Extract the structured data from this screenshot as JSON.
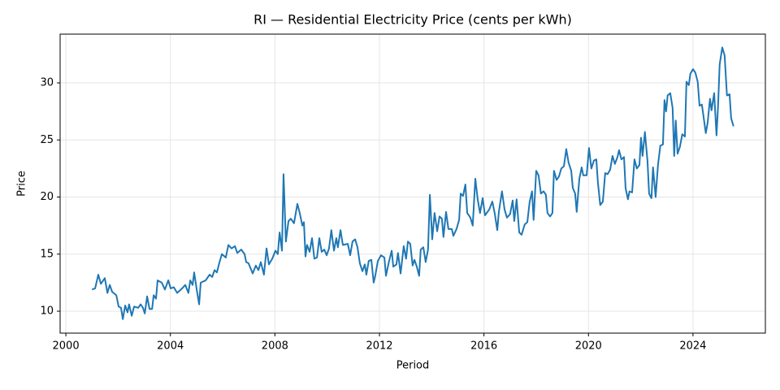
{
  "chart_data": {
    "type": "line",
    "title": "RI — Residential Electricity Price (cents per kWh)",
    "x_label": "Period",
    "y_label": "Price",
    "color": "#1f77b4",
    "grid": true,
    "xlim": [
      1999.78,
      2026.77
    ],
    "ylim": [
      8.08,
      34.27
    ],
    "xticks": [
      2000,
      2004,
      2008,
      2012,
      2016,
      2020,
      2024
    ],
    "yticks": [
      10,
      15,
      20,
      25,
      30
    ],
    "x": [
      2001.0,
      2001.12,
      2001.24,
      2001.34,
      2001.49,
      2001.59,
      2001.68,
      2001.77,
      2001.93,
      2002.02,
      2002.11,
      2002.18,
      2002.27,
      2002.36,
      2002.42,
      2002.52,
      2002.61,
      2002.77,
      2002.86,
      2002.95,
      2003.02,
      2003.11,
      2003.2,
      2003.3,
      2003.36,
      2003.45,
      2003.51,
      2003.67,
      2003.79,
      2003.92,
      2004.01,
      2004.13,
      2004.26,
      2004.45,
      2004.57,
      2004.69,
      2004.76,
      2004.85,
      2004.91,
      2005.0,
      2005.1,
      2005.16,
      2005.35,
      2005.5,
      2005.6,
      2005.69,
      2005.78,
      2005.88,
      2005.97,
      2006.12,
      2006.22,
      2006.34,
      2006.47,
      2006.56,
      2006.71,
      2006.84,
      2006.9,
      2006.99,
      2007.15,
      2007.27,
      2007.37,
      2007.46,
      2007.58,
      2007.68,
      2007.77,
      2007.9,
      2008.02,
      2008.11,
      2008.18,
      2008.27,
      2008.33,
      2008.42,
      2008.52,
      2008.61,
      2008.73,
      2008.86,
      2008.95,
      2009.05,
      2009.11,
      2009.17,
      2009.23,
      2009.33,
      2009.42,
      2009.51,
      2009.61,
      2009.7,
      2009.79,
      2009.89,
      2009.98,
      2010.07,
      2010.16,
      2010.26,
      2010.35,
      2010.41,
      2010.51,
      2010.6,
      2010.79,
      2010.88,
      2010.97,
      2011.07,
      2011.16,
      2011.25,
      2011.35,
      2011.44,
      2011.5,
      2011.59,
      2011.69,
      2011.78,
      2011.84,
      2011.94,
      2012.06,
      2012.19,
      2012.25,
      2012.37,
      2012.47,
      2012.53,
      2012.65,
      2012.71,
      2012.81,
      2012.93,
      2013.02,
      2013.09,
      2013.18,
      2013.27,
      2013.34,
      2013.43,
      2013.52,
      2013.58,
      2013.68,
      2013.77,
      2013.86,
      2013.93,
      2014.02,
      2014.11,
      2014.21,
      2014.3,
      2014.39,
      2014.45,
      2014.55,
      2014.64,
      2014.77,
      2014.83,
      2014.95,
      2015.05,
      2015.11,
      2015.2,
      2015.29,
      2015.36,
      2015.48,
      2015.57,
      2015.67,
      2015.76,
      2015.85,
      2015.95,
      2016.04,
      2016.2,
      2016.32,
      2016.41,
      2016.51,
      2016.57,
      2016.69,
      2016.79,
      2016.88,
      2017.0,
      2017.1,
      2017.16,
      2017.25,
      2017.35,
      2017.44,
      2017.56,
      2017.66,
      2017.75,
      2017.84,
      2017.9,
      2018.0,
      2018.09,
      2018.18,
      2018.28,
      2018.37,
      2018.43,
      2018.53,
      2018.62,
      2018.68,
      2018.78,
      2018.87,
      2018.96,
      2019.06,
      2019.15,
      2019.24,
      2019.34,
      2019.4,
      2019.49,
      2019.55,
      2019.65,
      2019.74,
      2019.8,
      2019.93,
      2020.02,
      2020.11,
      2020.21,
      2020.3,
      2020.36,
      2020.45,
      2020.55,
      2020.64,
      2020.73,
      2020.83,
      2020.92,
      2021.01,
      2021.11,
      2021.17,
      2021.26,
      2021.36,
      2021.42,
      2021.51,
      2021.57,
      2021.67,
      2021.76,
      2021.85,
      2021.95,
      2022.01,
      2022.07,
      2022.16,
      2022.26,
      2022.32,
      2022.41,
      2022.47,
      2022.57,
      2022.66,
      2022.75,
      2022.85,
      2022.91,
      2022.97,
      2023.03,
      2023.13,
      2023.22,
      2023.28,
      2023.34,
      2023.41,
      2023.5,
      2023.59,
      2023.69,
      2023.75,
      2023.84,
      2023.9,
      2024.0,
      2024.09,
      2024.18,
      2024.25,
      2024.34,
      2024.4,
      2024.49,
      2024.56,
      2024.65,
      2024.71,
      2024.81,
      2024.9,
      2024.96,
      2025.02,
      2025.12,
      2025.21,
      2025.3,
      2025.4,
      2025.46,
      2025.55
    ],
    "values": [
      11.9,
      12.0,
      13.2,
      12.4,
      12.9,
      11.6,
      12.3,
      11.7,
      11.4,
      10.4,
      10.3,
      9.3,
      10.5,
      9.9,
      10.6,
      9.6,
      10.4,
      10.3,
      10.6,
      10.3,
      9.8,
      11.3,
      10.2,
      10.2,
      11.4,
      11.1,
      12.7,
      12.5,
      11.9,
      12.7,
      12.0,
      12.1,
      11.6,
      12.0,
      12.3,
      11.6,
      12.7,
      12.3,
      13.4,
      12.0,
      10.6,
      12.5,
      12.7,
      13.2,
      13.0,
      13.6,
      13.4,
      14.3,
      15.0,
      14.7,
      15.8,
      15.5,
      15.7,
      15.1,
      15.4,
      15.0,
      14.3,
      14.2,
      13.3,
      14.0,
      13.6,
      14.3,
      13.2,
      15.5,
      14.1,
      14.6,
      15.3,
      15.0,
      16.9,
      15.3,
      22.0,
      16.1,
      17.9,
      18.1,
      17.7,
      19.4,
      18.6,
      17.5,
      17.8,
      14.8,
      15.8,
      15.2,
      16.4,
      14.6,
      14.7,
      16.4,
      15.2,
      15.4,
      14.9,
      15.5,
      17.1,
      15.3,
      16.4,
      15.6,
      17.1,
      15.8,
      15.9,
      14.9,
      16.1,
      16.3,
      15.6,
      14.2,
      13.5,
      14.1,
      13.2,
      14.4,
      14.5,
      12.5,
      13.1,
      14.4,
      14.9,
      14.7,
      13.1,
      14.4,
      15.3,
      13.9,
      14.1,
      15.1,
      13.3,
      15.7,
      14.6,
      16.1,
      15.9,
      14.0,
      14.5,
      13.9,
      13.1,
      15.4,
      15.6,
      14.3,
      15.4,
      20.2,
      16.3,
      18.6,
      17.0,
      18.3,
      18.1,
      16.5,
      18.7,
      17.2,
      17.2,
      16.6,
      17.2,
      18.0,
      20.3,
      20.1,
      21.1,
      18.6,
      18.2,
      17.5,
      21.6,
      19.8,
      18.6,
      19.9,
      18.4,
      18.9,
      19.6,
      18.6,
      17.1,
      18.7,
      20.5,
      18.9,
      18.2,
      18.5,
      19.7,
      17.9,
      19.8,
      16.9,
      16.7,
      17.6,
      17.8,
      19.6,
      20.5,
      18.0,
      22.3,
      21.9,
      20.3,
      20.5,
      20.2,
      18.6,
      18.3,
      18.6,
      22.3,
      21.5,
      21.8,
      22.5,
      22.7,
      24.2,
      23.0,
      22.3,
      20.8,
      20.3,
      18.7,
      21.6,
      22.6,
      21.9,
      21.9,
      24.3,
      22.5,
      23.2,
      23.3,
      21.3,
      19.3,
      19.6,
      22.1,
      22.0,
      22.4,
      23.6,
      22.9,
      23.5,
      24.1,
      23.3,
      23.5,
      20.8,
      19.8,
      20.5,
      20.4,
      23.3,
      22.5,
      22.8,
      25.2,
      23.6,
      25.7,
      23.1,
      20.3,
      19.9,
      22.6,
      20.0,
      22.8,
      24.5,
      24.6,
      28.5,
      27.5,
      28.9,
      29.1,
      27.8,
      23.6,
      26.7,
      23.8,
      24.4,
      25.5,
      25.3,
      30.1,
      29.8,
      30.8,
      31.2,
      30.9,
      30.1,
      28.0,
      28.1,
      27.1,
      25.6,
      26.5,
      28.6,
      27.6,
      29.1,
      25.4,
      28.0,
      31.6,
      33.1,
      32.4,
      28.9,
      29.0,
      26.9,
      26.2
    ]
  }
}
